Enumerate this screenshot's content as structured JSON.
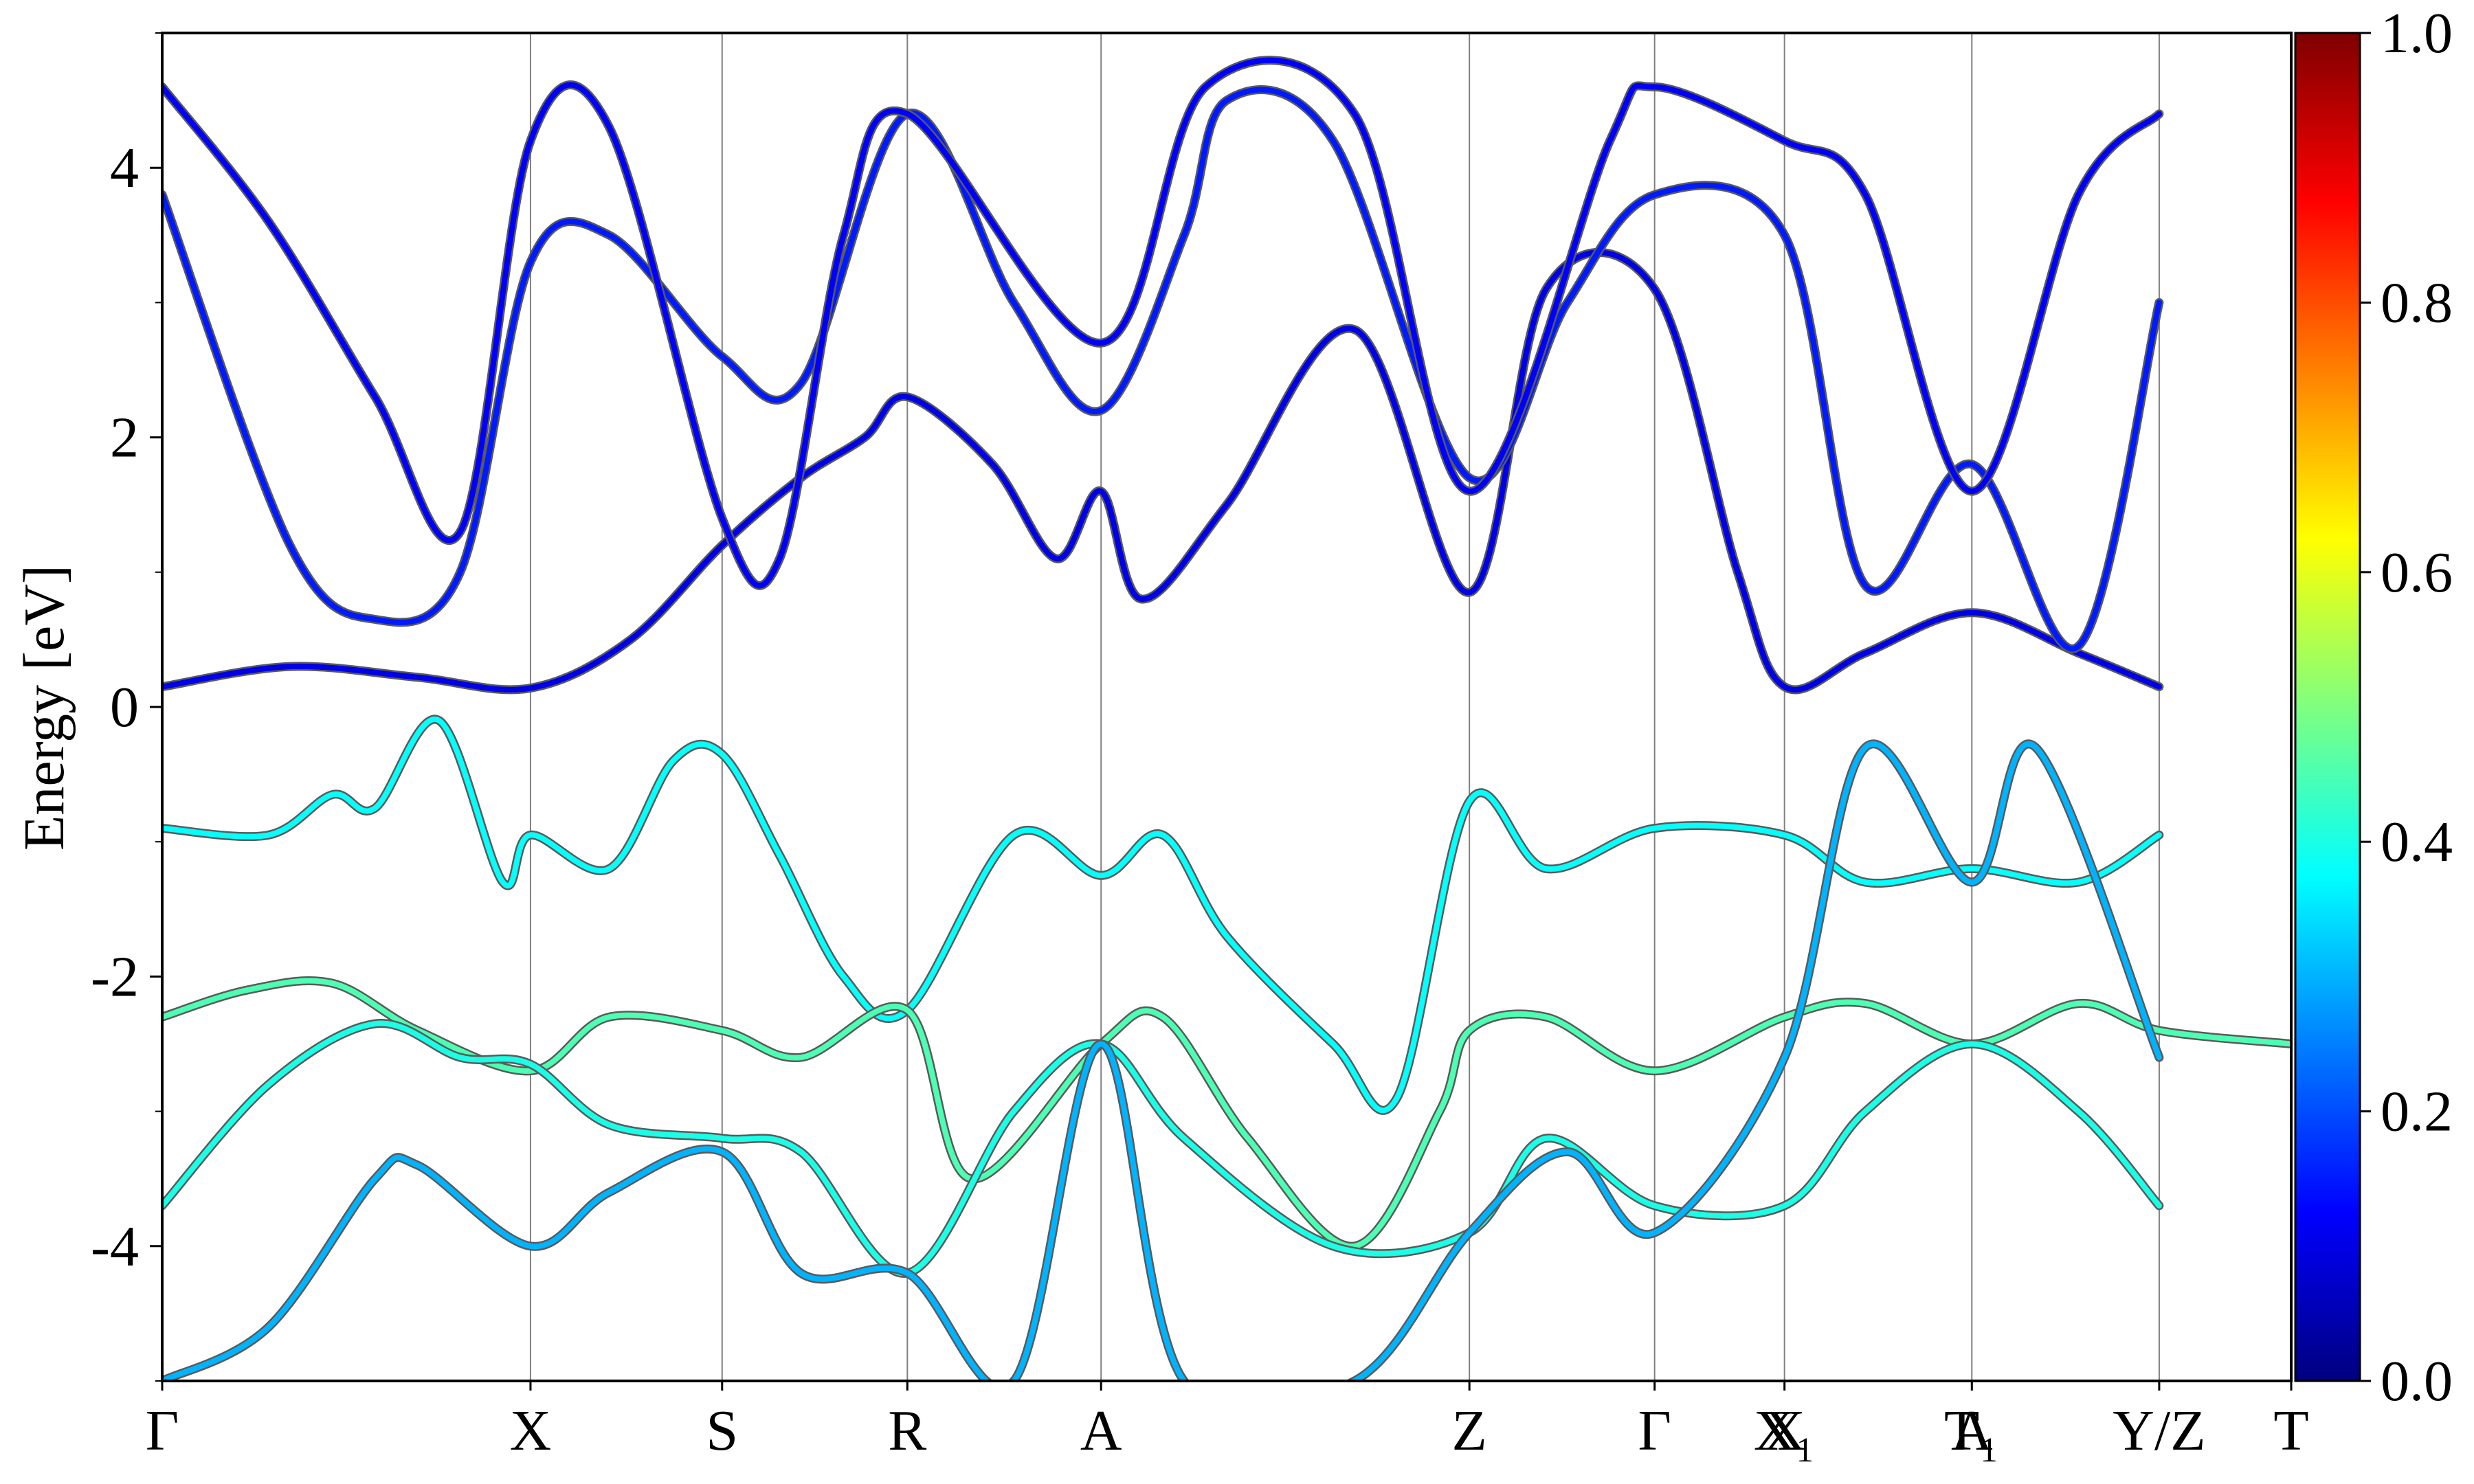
{
  "chart_data": {
    "type": "line",
    "title": "",
    "xlabel": "",
    "ylabel": "Energy [eV]",
    "ylim": [
      -5,
      5
    ],
    "yticks": [
      -4,
      -2,
      0,
      2,
      4
    ],
    "yticks_minor": [
      -5,
      -3,
      -1,
      1,
      3,
      5
    ],
    "xlim": [
      0,
      1
    ],
    "grid": false,
    "kpoints": [
      {
        "label": "Γ",
        "x": 0.0
      },
      {
        "label": "X",
        "x": 0.173
      },
      {
        "label": "S",
        "x": 0.263
      },
      {
        "label": "R",
        "x": 0.35
      },
      {
        "label": "A",
        "x": 0.441
      },
      {
        "label": "Z",
        "x": 0.614
      },
      {
        "label": "Γ",
        "x": 0.701
      },
      {
        "label": "X",
        "x": 0.762
      },
      {
        "label": "X₁",
        "x": 0.762
      },
      {
        "label": "A",
        "x": 0.85
      },
      {
        "label": "T₁",
        "x": 0.85
      },
      {
        "label": "Y/Z",
        "x": 0.938
      },
      {
        "label": "T",
        "x": 1.0
      }
    ],
    "colorbar": {
      "min": 0.0,
      "max": 1.0,
      "ticks": [
        "0.0",
        "0.2",
        "0.4",
        "0.6",
        "0.8",
        "1.0"
      ],
      "colormap": "jet"
    },
    "series": [
      {
        "weight": 0.1,
        "points": [
          [
            0.0,
            0.15
          ],
          [
            0.06,
            0.3
          ],
          [
            0.12,
            0.22
          ],
          [
            0.173,
            0.14
          ],
          [
            0.22,
            0.5
          ],
          [
            0.263,
            1.2
          ],
          [
            0.3,
            1.7
          ],
          [
            0.33,
            2.0
          ],
          [
            0.35,
            2.3
          ],
          [
            0.39,
            1.8
          ],
          [
            0.42,
            1.1
          ],
          [
            0.441,
            1.6
          ],
          [
            0.46,
            0.8
          ],
          [
            0.5,
            1.5
          ],
          [
            0.56,
            2.8
          ],
          [
            0.614,
            0.85
          ],
          [
            0.65,
            3.1
          ],
          [
            0.701,
            3.1
          ],
          [
            0.74,
            1.0
          ],
          [
            0.762,
            0.15
          ],
          [
            0.8,
            0.4
          ],
          [
            0.85,
            0.7
          ],
          [
            0.9,
            0.4
          ],
          [
            0.938,
            0.15
          ]
        ]
      },
      {
        "weight": 0.15,
        "points": [
          [
            0.0,
            3.8
          ],
          [
            0.06,
            1.2
          ],
          [
            0.1,
            0.65
          ],
          [
            0.14,
            1.0
          ],
          [
            0.173,
            3.3
          ],
          [
            0.21,
            3.5
          ],
          [
            0.263,
            2.6
          ],
          [
            0.3,
            2.4
          ],
          [
            0.35,
            4.4
          ],
          [
            0.4,
            3.0
          ],
          [
            0.441,
            2.2
          ],
          [
            0.48,
            3.5
          ],
          [
            0.5,
            4.5
          ],
          [
            0.55,
            4.2
          ],
          [
            0.614,
            1.7
          ],
          [
            0.66,
            3.0
          ],
          [
            0.701,
            3.8
          ],
          [
            0.762,
            3.5
          ],
          [
            0.8,
            0.9
          ],
          [
            0.85,
            1.8
          ],
          [
            0.9,
            0.45
          ],
          [
            0.938,
            3.0
          ]
        ]
      },
      {
        "weight": 0.12,
        "points": [
          [
            0.0,
            4.6
          ],
          [
            0.05,
            3.6
          ],
          [
            0.1,
            2.3
          ],
          [
            0.14,
            1.3
          ],
          [
            0.173,
            4.2
          ],
          [
            0.21,
            4.3
          ],
          [
            0.263,
            1.4
          ],
          [
            0.29,
            1.1
          ],
          [
            0.32,
            3.5
          ],
          [
            0.35,
            4.4
          ],
          [
            0.441,
            2.7
          ],
          [
            0.49,
            4.6
          ],
          [
            0.56,
            4.4
          ],
          [
            0.614,
            1.6
          ],
          [
            0.68,
            4.2
          ],
          [
            0.701,
            4.6
          ],
          [
            0.762,
            4.2
          ],
          [
            0.8,
            3.8
          ],
          [
            0.85,
            1.6
          ],
          [
            0.9,
            3.8
          ],
          [
            0.938,
            4.4
          ]
        ]
      },
      {
        "weight": 0.38,
        "points": [
          [
            0.0,
            -0.9
          ],
          [
            0.05,
            -0.95
          ],
          [
            0.08,
            -0.65
          ],
          [
            0.1,
            -0.75
          ],
          [
            0.13,
            -0.1
          ],
          [
            0.16,
            -1.3
          ],
          [
            0.173,
            -0.95
          ],
          [
            0.21,
            -1.2
          ],
          [
            0.24,
            -0.4
          ],
          [
            0.263,
            -0.35
          ],
          [
            0.29,
            -1.1
          ],
          [
            0.32,
            -2.0
          ],
          [
            0.35,
            -2.25
          ],
          [
            0.4,
            -0.95
          ],
          [
            0.441,
            -1.25
          ],
          [
            0.47,
            -0.95
          ],
          [
            0.5,
            -1.7
          ],
          [
            0.55,
            -2.5
          ],
          [
            0.58,
            -2.9
          ],
          [
            0.614,
            -0.7
          ],
          [
            0.65,
            -1.2
          ],
          [
            0.701,
            -0.9
          ],
          [
            0.762,
            -0.95
          ],
          [
            0.8,
            -1.3
          ],
          [
            0.85,
            -1.2
          ],
          [
            0.9,
            -1.3
          ],
          [
            0.938,
            -0.95
          ]
        ]
      },
      {
        "weight": 0.45,
        "points": [
          [
            0.0,
            -2.3
          ],
          [
            0.04,
            -2.1
          ],
          [
            0.08,
            -2.05
          ],
          [
            0.12,
            -2.4
          ],
          [
            0.173,
            -2.7
          ],
          [
            0.21,
            -2.3
          ],
          [
            0.263,
            -2.4
          ],
          [
            0.3,
            -2.6
          ],
          [
            0.35,
            -2.25
          ],
          [
            0.38,
            -3.5
          ],
          [
            0.441,
            -2.5
          ],
          [
            0.47,
            -2.3
          ],
          [
            0.51,
            -3.2
          ],
          [
            0.56,
            -4.0
          ],
          [
            0.6,
            -3.0
          ],
          [
            0.614,
            -2.4
          ],
          [
            0.65,
            -2.3
          ],
          [
            0.701,
            -2.7
          ],
          [
            0.762,
            -2.3
          ],
          [
            0.8,
            -2.2
          ],
          [
            0.85,
            -2.5
          ],
          [
            0.9,
            -2.2
          ],
          [
            0.938,
            -2.4
          ],
          [
            1.0,
            -2.5
          ]
        ]
      },
      {
        "weight": 0.4,
        "points": [
          [
            0.0,
            -3.7
          ],
          [
            0.05,
            -2.8
          ],
          [
            0.1,
            -2.35
          ],
          [
            0.14,
            -2.6
          ],
          [
            0.173,
            -2.65
          ],
          [
            0.21,
            -3.1
          ],
          [
            0.263,
            -3.2
          ],
          [
            0.3,
            -3.3
          ],
          [
            0.35,
            -4.2
          ],
          [
            0.4,
            -3.0
          ],
          [
            0.441,
            -2.5
          ],
          [
            0.48,
            -3.2
          ],
          [
            0.55,
            -4.0
          ],
          [
            0.614,
            -3.9
          ],
          [
            0.65,
            -3.2
          ],
          [
            0.701,
            -3.7
          ],
          [
            0.762,
            -3.7
          ],
          [
            0.8,
            -3.0
          ],
          [
            0.85,
            -2.5
          ],
          [
            0.9,
            -3.0
          ],
          [
            0.938,
            -3.7
          ]
        ]
      },
      {
        "weight": 0.3,
        "points": [
          [
            0.0,
            -5.0
          ],
          [
            0.05,
            -4.6
          ],
          [
            0.1,
            -3.5
          ],
          [
            0.12,
            -3.4
          ],
          [
            0.173,
            -4.0
          ],
          [
            0.21,
            -3.6
          ],
          [
            0.263,
            -3.3
          ],
          [
            0.3,
            -4.2
          ],
          [
            0.35,
            -4.2
          ],
          [
            0.4,
            -5.0
          ],
          [
            0.441,
            -2.5
          ],
          [
            0.48,
            -5.0
          ],
          [
            0.56,
            -5.0
          ],
          [
            0.614,
            -3.9
          ],
          [
            0.66,
            -3.3
          ],
          [
            0.701,
            -3.9
          ],
          [
            0.762,
            -2.6
          ],
          [
            0.8,
            -0.3
          ],
          [
            0.85,
            -1.3
          ],
          [
            0.88,
            -0.3
          ],
          [
            0.938,
            -2.6
          ]
        ]
      }
    ]
  }
}
